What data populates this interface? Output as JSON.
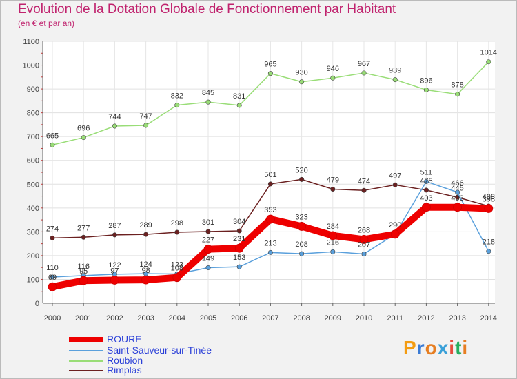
{
  "chart_data": {
    "type": "line",
    "title": "Evolution de la Dotation Globale de Fonctionnement par Habitant",
    "subtitle": "(en € et par an)",
    "xlabel": "",
    "ylabel": "",
    "ylim": [
      0,
      1100
    ],
    "yticks": [
      0,
      100,
      200,
      300,
      400,
      500,
      600,
      700,
      800,
      900,
      1000,
      1100
    ],
    "categories": [
      "2000",
      "2001",
      "2002",
      "2003",
      "2004",
      "2005",
      "2006",
      "2007",
      "2008",
      "2009",
      "2010",
      "2011",
      "2012",
      "2013",
      "2014"
    ],
    "series": [
      {
        "name": "ROURE",
        "color": "#ee0000",
        "values": [
          69,
          95,
          97,
          98,
          108,
          227,
          231,
          353,
          323,
          284,
          268,
          290,
          403,
          403,
          398
        ]
      },
      {
        "name": "Saint-Sauveur-sur-Tinée",
        "color": "#5aa0dc",
        "values": [
          110,
          116,
          122,
          124,
          123,
          149,
          153,
          213,
          208,
          216,
          207,
          290,
          511,
          466,
          218
        ]
      },
      {
        "name": "Roubion",
        "color": "#99dd77",
        "values": [
          665,
          696,
          744,
          747,
          832,
          845,
          831,
          965,
          930,
          946,
          967,
          939,
          896,
          878,
          1014
        ]
      },
      {
        "name": "Rimplas",
        "color": "#6b2020",
        "values": [
          274,
          277,
          287,
          289,
          298,
          301,
          304,
          501,
          520,
          479,
          474,
          497,
          475,
          445,
          408
        ]
      }
    ],
    "legend": "bottom-left"
  },
  "logo": {
    "letters": [
      "P",
      "r",
      "o",
      "x",
      "i",
      "t",
      "i"
    ],
    "colors": [
      "#f39c12",
      "#3a7bd5",
      "#e67e22",
      "#3aa0d8",
      "#e74c3c",
      "#27ae60",
      "#e67e22"
    ]
  }
}
